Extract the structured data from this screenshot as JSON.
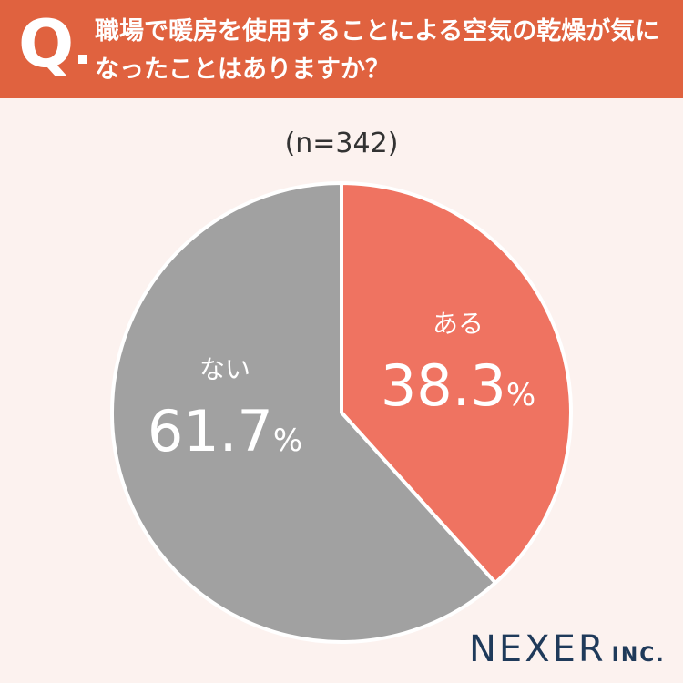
{
  "header": {
    "q_letter": "Q",
    "question": "職場で暖房を使用することによる空気の乾燥が気になったことはありますか？",
    "background": "#e0623f"
  },
  "sample_label": "(n=342)",
  "chart_data": {
    "type": "pie",
    "title": "",
    "start_angle_deg": 0,
    "slices": [
      {
        "label": "ある",
        "value": 38.3,
        "display": "38.3",
        "unit": "%",
        "color": "#ef7361"
      },
      {
        "label": "ない",
        "value": 61.7,
        "display": "61.7",
        "unit": "%",
        "color": "#a1a1a1"
      }
    ]
  },
  "logo": {
    "main": "NEXER",
    "suffix": "INC.",
    "color": "#1f3a5a"
  }
}
